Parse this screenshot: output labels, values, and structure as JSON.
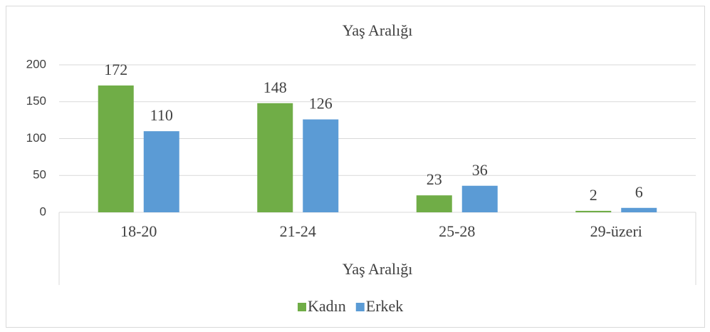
{
  "chart_data": {
    "type": "bar",
    "title": "Yaş Aralığı",
    "x_label": "Yaş Aralığı",
    "categories": [
      "18-20",
      "21-24",
      "25-28",
      "29-üzeri"
    ],
    "series": [
      {
        "name": "Kadın",
        "color": "#70ad47",
        "values": [
          172,
          148,
          23,
          2
        ]
      },
      {
        "name": "Erkek",
        "color": "#5b9bd5",
        "values": [
          110,
          126,
          36,
          6
        ]
      }
    ],
    "ylim": [
      0,
      200
    ],
    "yticks": [
      0,
      50,
      100,
      150,
      200
    ],
    "grid": true,
    "legend": "bottom"
  }
}
